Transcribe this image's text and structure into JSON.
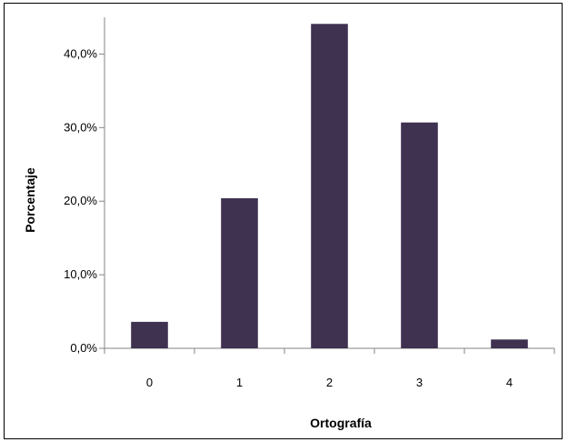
{
  "chart_data": {
    "type": "bar",
    "categories": [
      "0",
      "1",
      "2",
      "3",
      "4"
    ],
    "values": [
      3.6,
      20.4,
      44.1,
      30.7,
      1.2
    ],
    "title": "",
    "xlabel": "Ortografía",
    "ylabel": "Porcentaje",
    "ylim": [
      0,
      45
    ],
    "yticks": [
      0,
      10,
      20,
      30,
      40
    ],
    "ytick_labels": [
      "0,0%",
      "10,0%",
      "20,0%",
      "30,0%",
      "40,0%"
    ],
    "grid": false,
    "legend": "none",
    "bar_color": "#3f3150"
  }
}
